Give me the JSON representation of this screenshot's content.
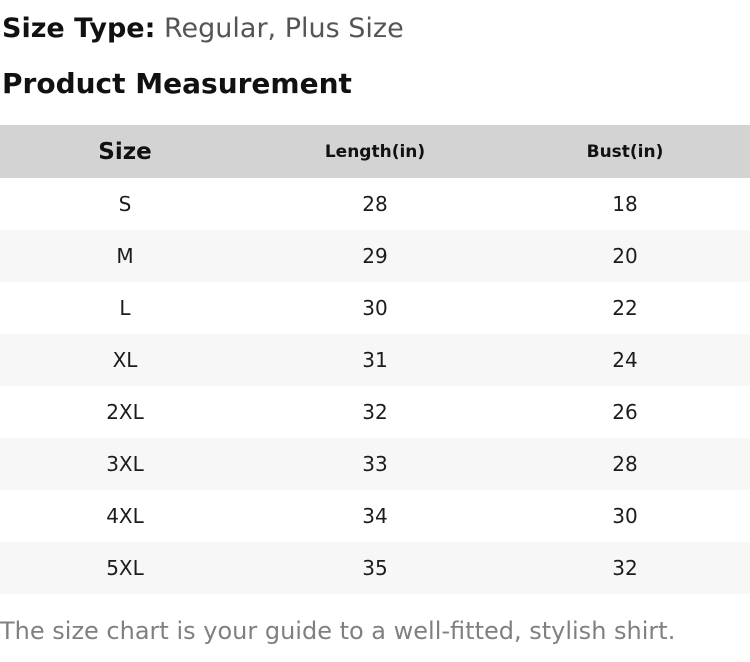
{
  "size_type": {
    "label": "Size Type:",
    "value": "Regular, Plus Size"
  },
  "section_title": "Product Measurement",
  "table": {
    "columns": [
      "Size",
      "Length(in)",
      "Bust(in)"
    ],
    "rows": [
      [
        "S",
        "28",
        "18"
      ],
      [
        "M",
        "29",
        "20"
      ],
      [
        "L",
        "30",
        "22"
      ],
      [
        "XL",
        "31",
        "24"
      ],
      [
        "2XL",
        "32",
        "26"
      ],
      [
        "3XL",
        "33",
        "28"
      ],
      [
        "4XL",
        "34",
        "30"
      ],
      [
        "5XL",
        "35",
        "32"
      ]
    ]
  },
  "caption": "The size chart is your guide to a well-fitted, stylish shirt.",
  "colors": {
    "header_bg": "#d3d3d3",
    "alt_row_bg": "#f7f7f7",
    "heading_text": "#111111",
    "value_text": "#555555",
    "cell_text": "#1c1c1c",
    "caption_text": "#808080",
    "page_bg": "#ffffff"
  }
}
